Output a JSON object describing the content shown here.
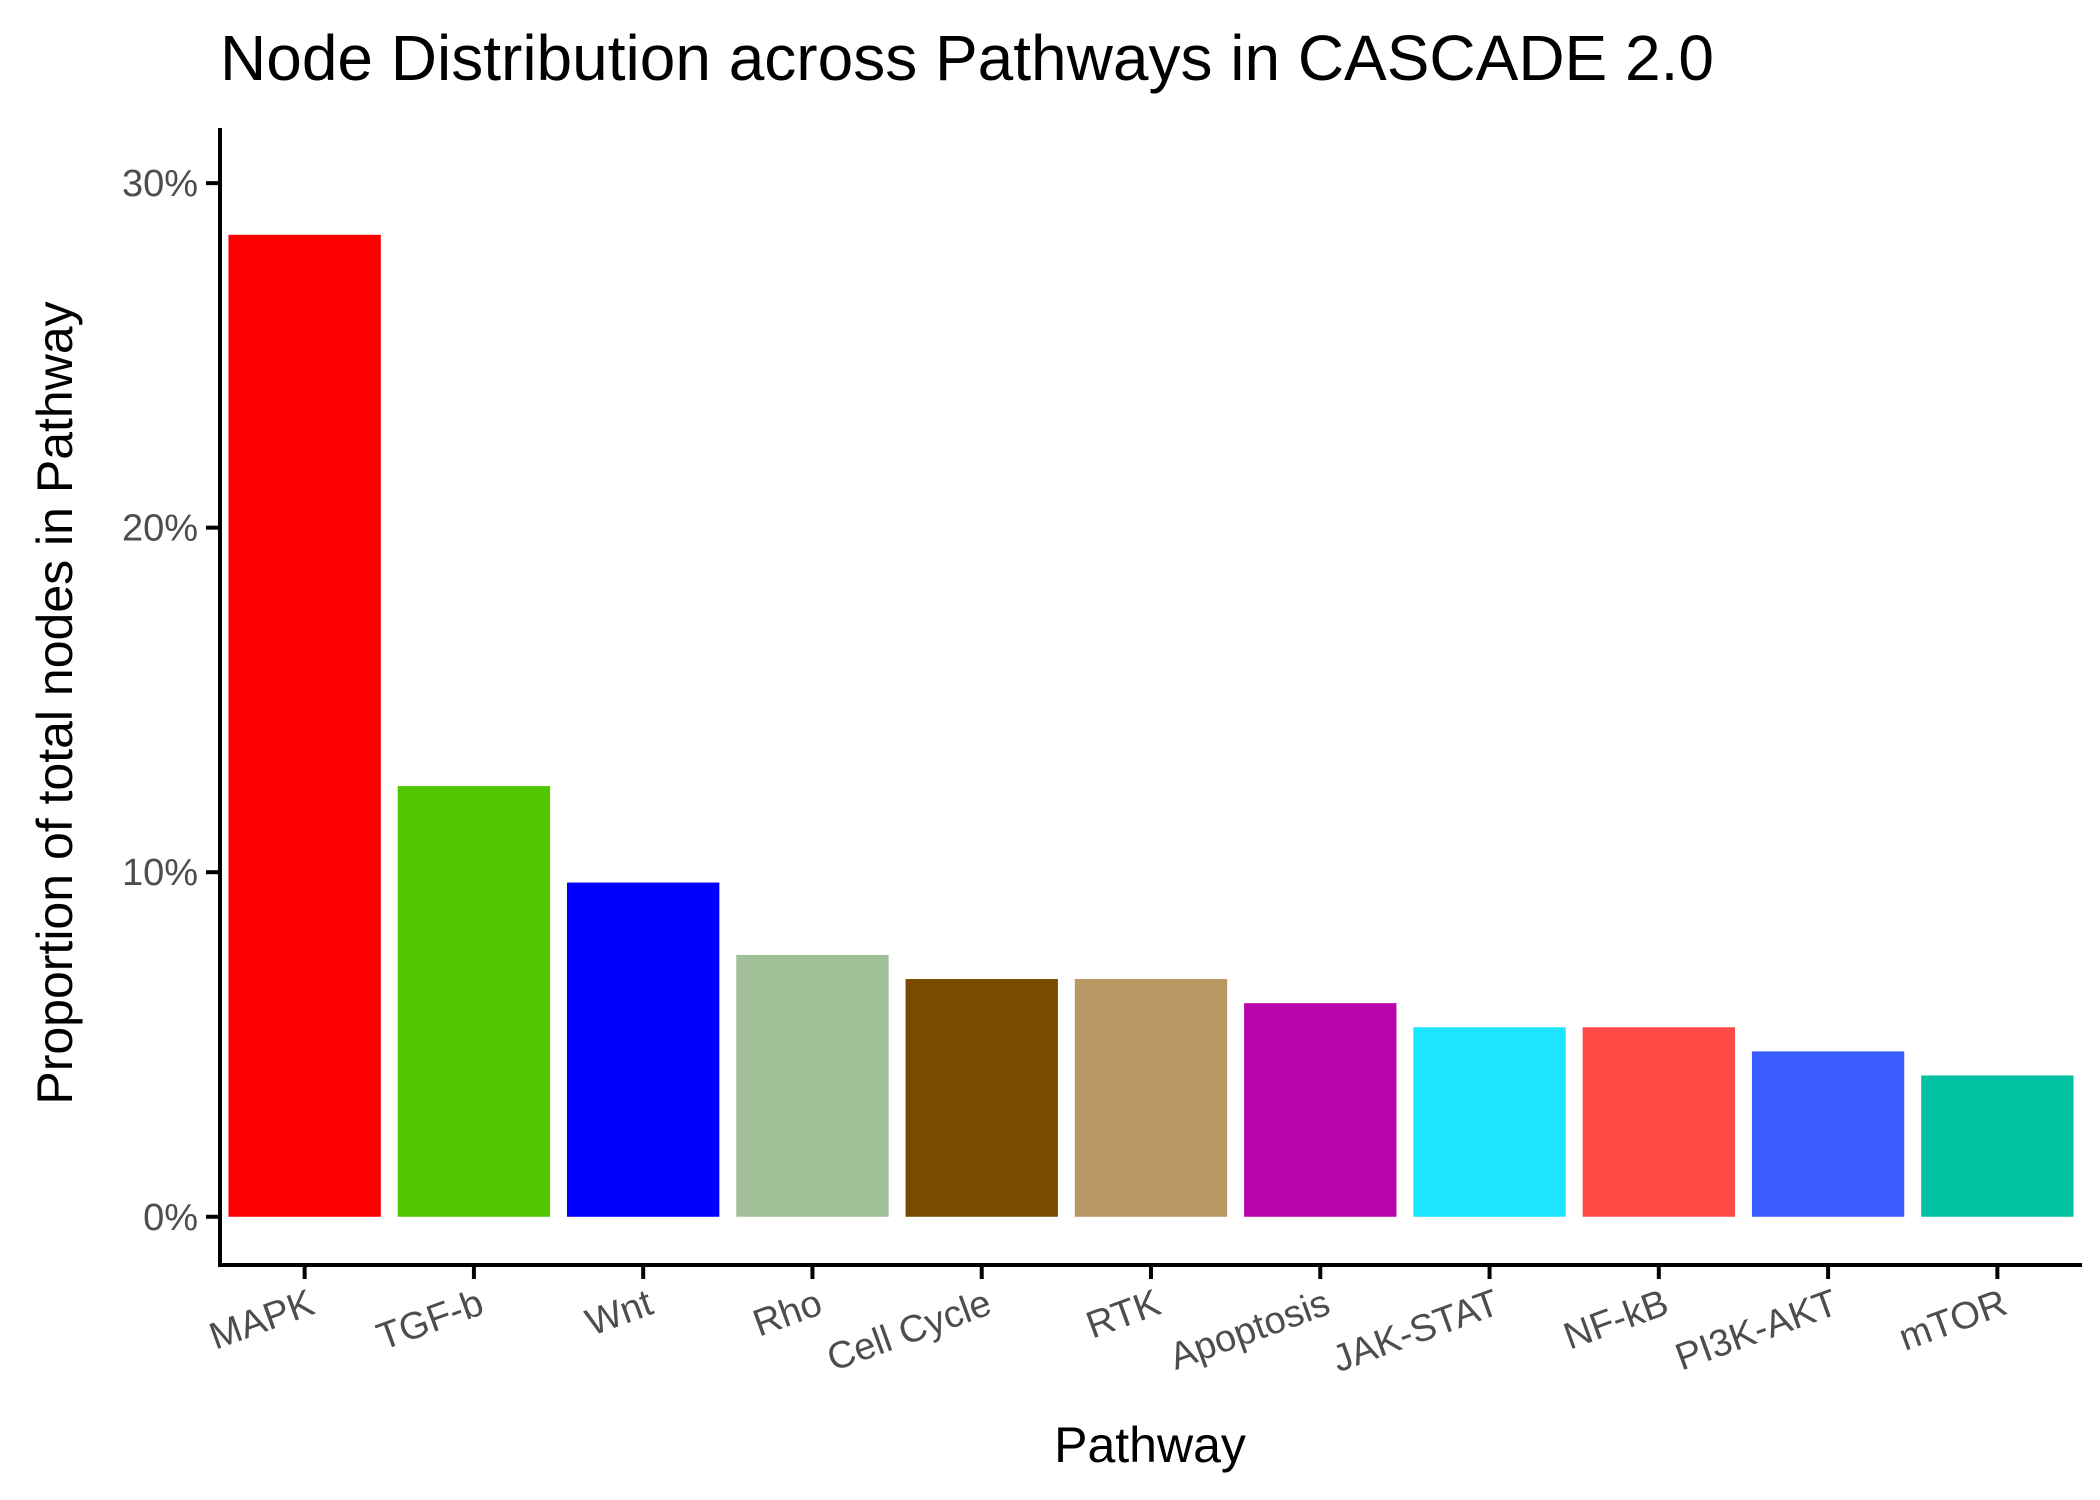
{
  "chart_data": {
    "type": "bar",
    "title": "Node Distribution across Pathways in CASCADE 2.0",
    "xlabel": "Pathway",
    "ylabel": "Proportion of total nodes in Pathway",
    "categories": [
      "MAPK",
      "TGF-b",
      "Wnt",
      "Rho",
      "Cell Cycle",
      "RTK",
      "Apoptosis",
      "JAK-STAT",
      "NF-kB",
      "PI3K-AKT",
      "mTOR"
    ],
    "values": [
      28.5,
      12.5,
      9.7,
      7.6,
      6.9,
      6.9,
      6.2,
      5.5,
      5.5,
      4.8,
      4.1
    ],
    "colors": [
      "#ff0000",
      "#4fc600",
      "#0000ff",
      "#a3c199",
      "#7a4a00",
      "#b79762",
      "#b904a9",
      "#1ce6ff",
      "#ff4a46",
      "#3b5dff",
      "#00c1a2"
    ],
    "y_ticks": [
      0,
      10,
      20,
      30
    ],
    "y_tick_labels": [
      "0%",
      "10%",
      "20%",
      "30%"
    ],
    "ylim": [
      -1.4,
      31.6
    ],
    "grid": false,
    "legend": "none"
  }
}
